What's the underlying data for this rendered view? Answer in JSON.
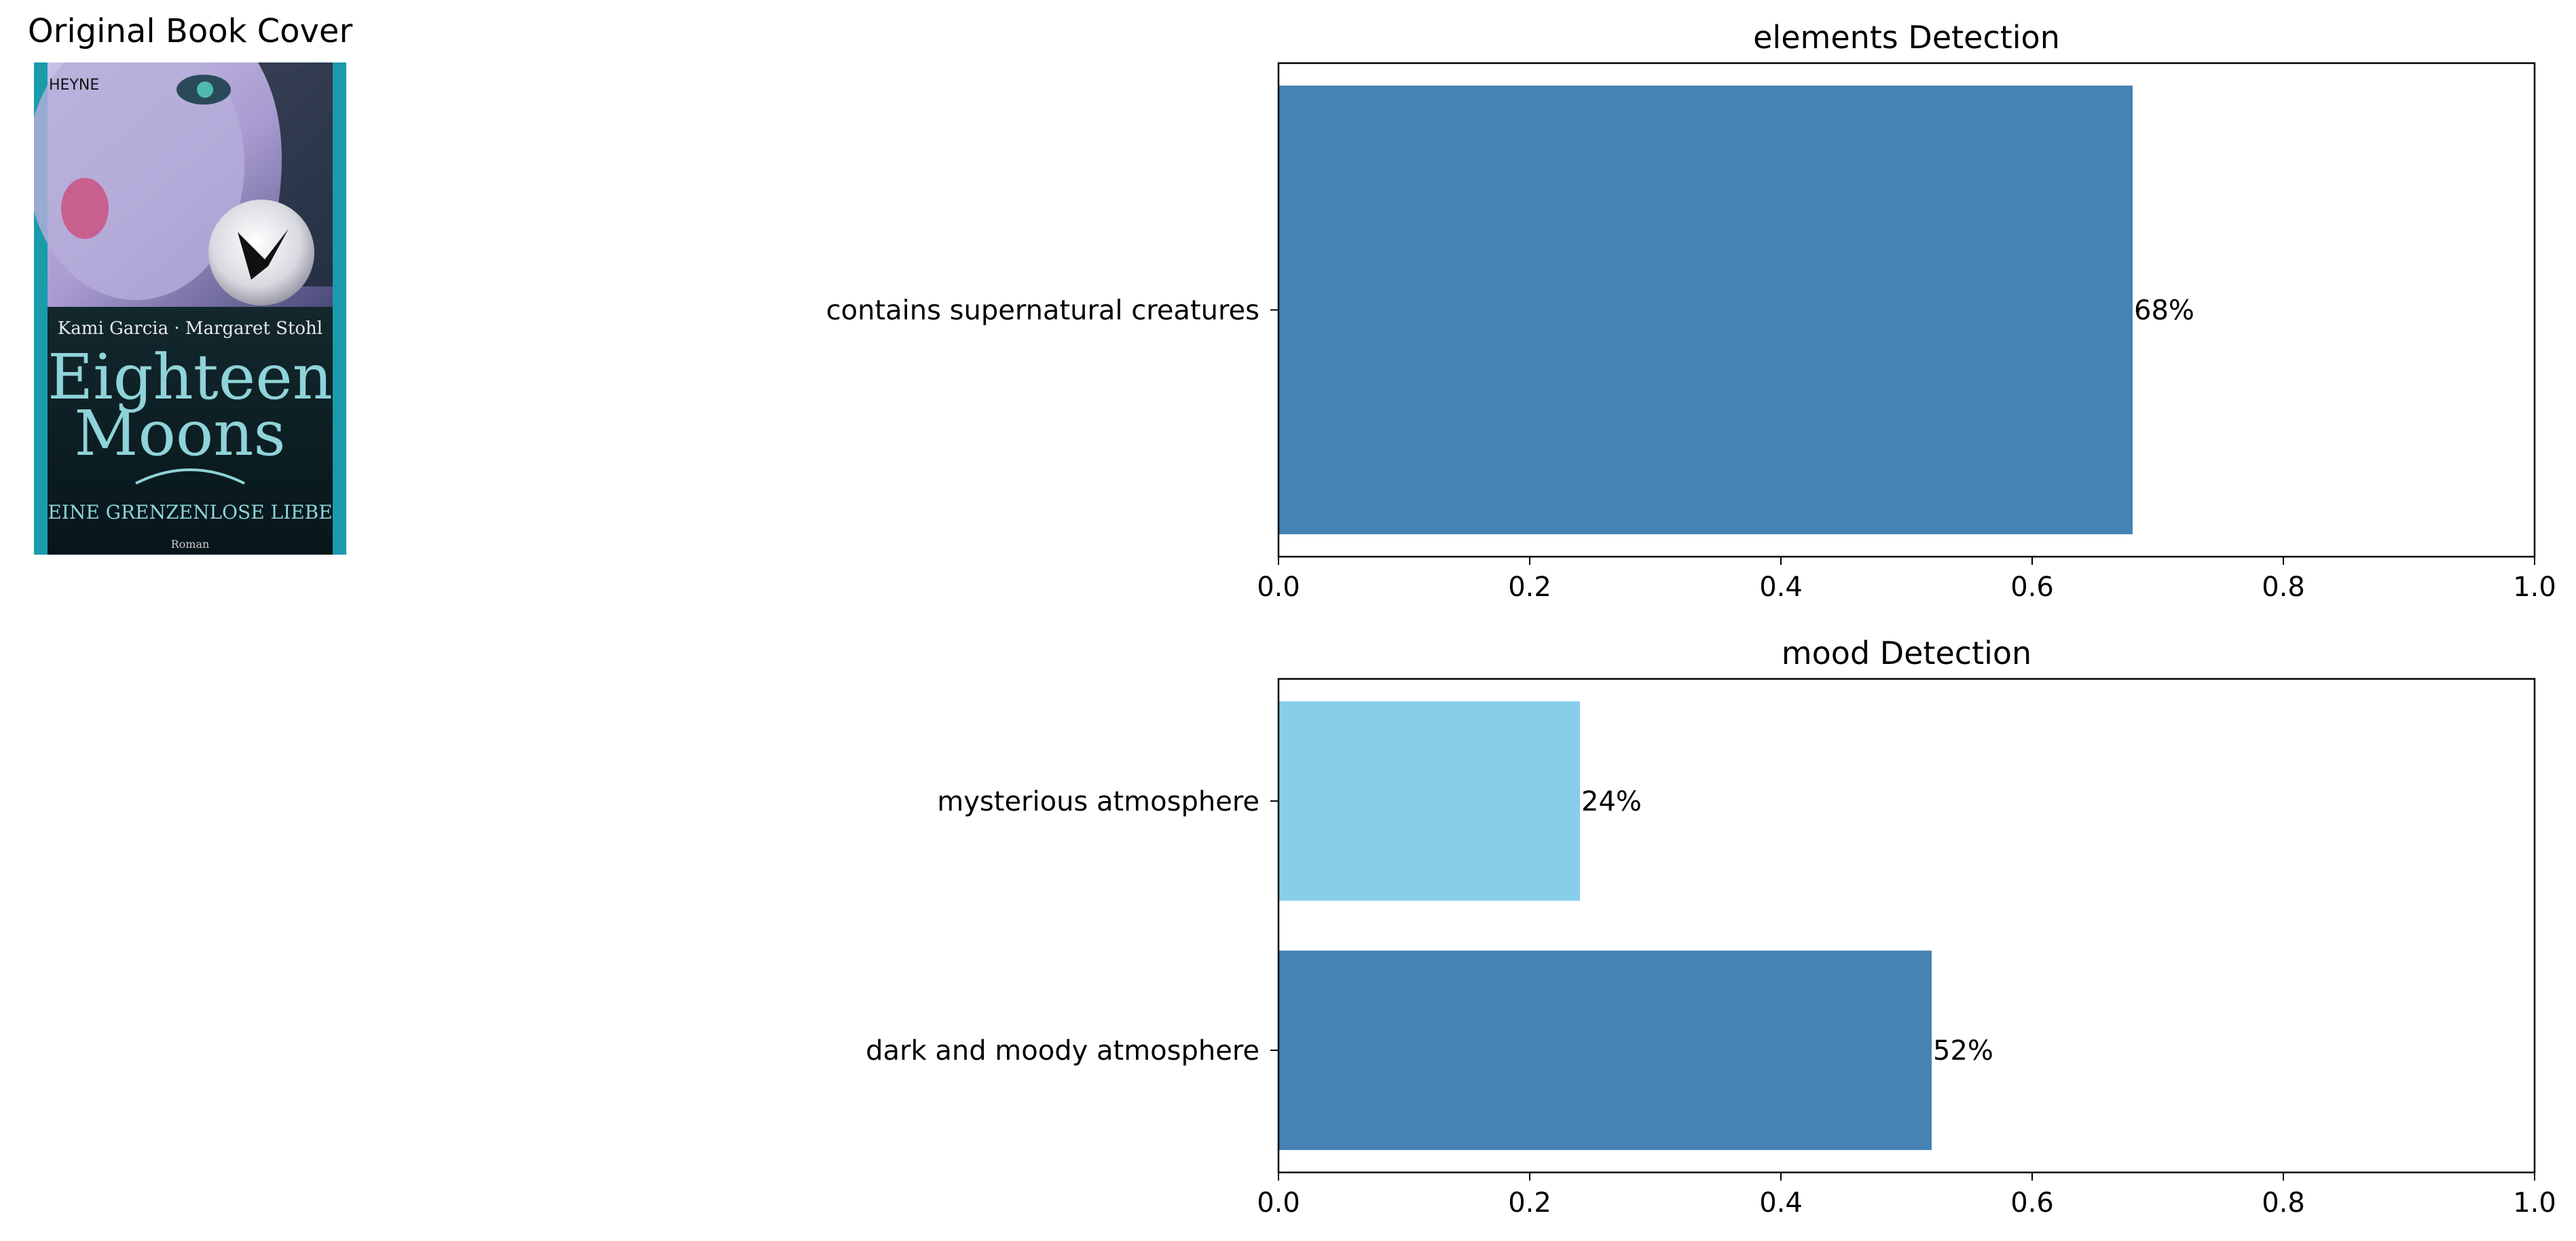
{
  "cover": {
    "title": "Original Book Cover",
    "publisher": "HEYNE",
    "authors": "Kami Garcia · Margaret Stohl",
    "book_title_line1": "Eighteen",
    "book_title_line2": "Moons",
    "subtitle": "EINE GRENZENLOSE LIEBE",
    "genre": "Roman",
    "colors": {
      "border": "#1a9bab",
      "background": "#0c1d22",
      "title": "#8fd3da"
    }
  },
  "chart_data": [
    {
      "type": "bar",
      "orientation": "horizontal",
      "title": "elements Detection",
      "categories": [
        "contains supernatural creatures"
      ],
      "values": [
        0.68
      ],
      "data_labels": [
        "68%"
      ],
      "colors": [
        "#4682b4"
      ],
      "xlim": [
        0,
        1.0
      ],
      "xticks": [
        "0.0",
        "0.2",
        "0.4",
        "0.6",
        "0.8",
        "1.0"
      ],
      "grid": false
    },
    {
      "type": "bar",
      "orientation": "horizontal",
      "title": "mood Detection",
      "categories": [
        "mysterious atmosphere",
        "dark and moody atmosphere"
      ],
      "values": [
        0.24,
        0.52
      ],
      "data_labels": [
        "24%",
        "52%"
      ],
      "colors": [
        "#87ceeb",
        "#4682b4"
      ],
      "xlim": [
        0,
        1.0
      ],
      "xticks": [
        "0.0",
        "0.2",
        "0.4",
        "0.6",
        "0.8",
        "1.0"
      ],
      "grid": false
    }
  ]
}
